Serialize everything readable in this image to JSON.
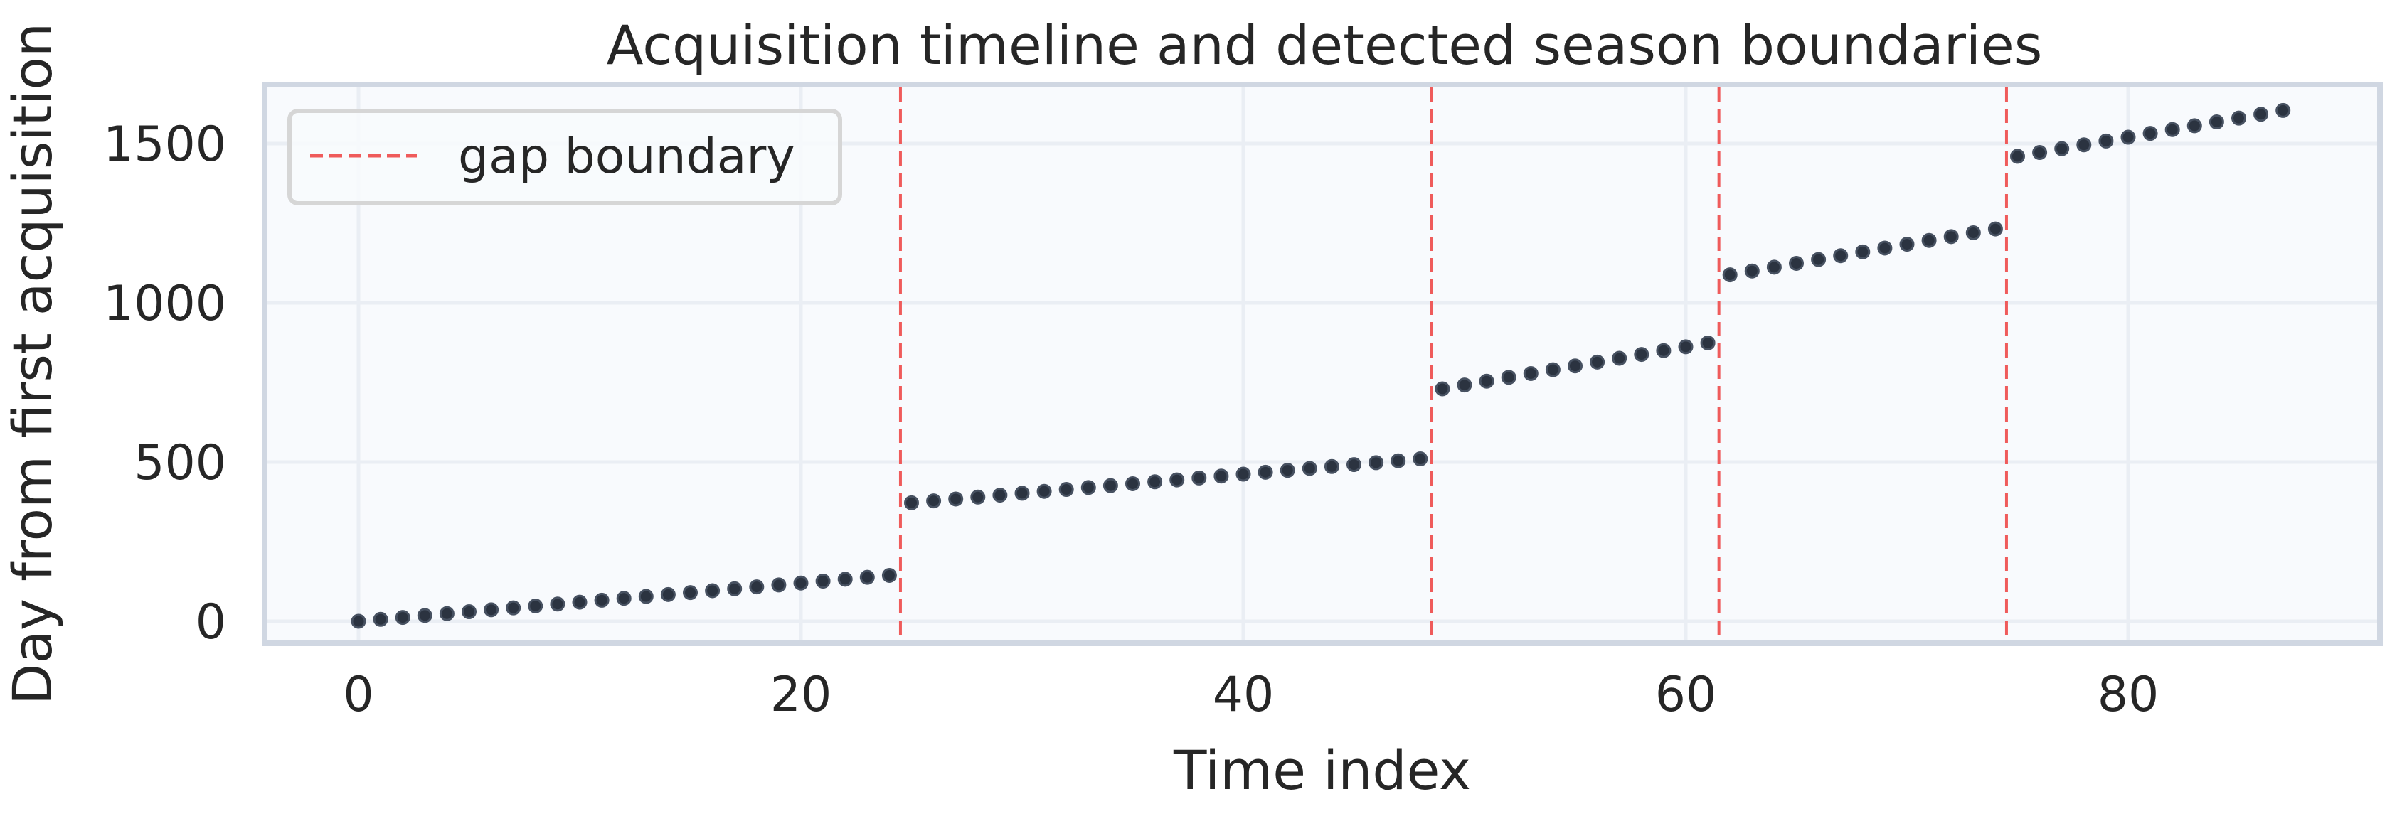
{
  "colors": {
    "background": "#ffffff",
    "plot_background": "#f8fafd",
    "plot_frame": "#d0d7e2",
    "grid": "#eaeef4",
    "points": "#2b3340",
    "points_edge": "#475161",
    "boundary": "#ef5b5b",
    "legend_border": "#d6d6d6",
    "text": "#262626"
  },
  "chart_data": {
    "type": "scatter",
    "title": "Acquisition timeline and detected season boundaries",
    "xlabel": "Time index",
    "ylabel": "Day from first acquisition",
    "xlim": [
      -4.5,
      91.5
    ],
    "ylim": [
      -80,
      1690
    ],
    "xticks": [
      0,
      20,
      40,
      60,
      80
    ],
    "yticks": [
      0,
      500,
      1000,
      1500
    ],
    "grid": true,
    "legend": {
      "position": "upper left",
      "entries": [
        {
          "label": "gap boundary",
          "style": "dashed",
          "color": "#ef5b5b"
        }
      ]
    },
    "series": [
      {
        "name": "acquisitions",
        "x": [
          0,
          1,
          2,
          3,
          4,
          5,
          6,
          7,
          8,
          9,
          10,
          11,
          12,
          13,
          14,
          15,
          16,
          17,
          18,
          19,
          20,
          21,
          22,
          23,
          24,
          25,
          26,
          27,
          28,
          29,
          30,
          31,
          32,
          33,
          34,
          35,
          36,
          37,
          38,
          39,
          40,
          41,
          42,
          43,
          44,
          45,
          46,
          47,
          48,
          49,
          50,
          51,
          52,
          53,
          54,
          55,
          56,
          57,
          58,
          59,
          60,
          61,
          62,
          63,
          64,
          65,
          66,
          67,
          68,
          69,
          70,
          71,
          72,
          73,
          74,
          75,
          76,
          77,
          78,
          79,
          80,
          81,
          82,
          83,
          84,
          85,
          86,
          87
        ],
        "y": [
          0,
          6,
          12,
          18,
          24,
          30,
          36,
          42,
          48,
          54,
          60,
          66,
          72,
          78,
          84,
          90,
          96,
          102,
          108,
          114,
          120,
          126,
          132,
          138,
          144,
          372,
          378,
          384,
          390,
          396,
          402,
          408,
          414,
          420,
          426,
          432,
          438,
          444,
          450,
          456,
          462,
          468,
          474,
          480,
          486,
          492,
          498,
          504,
          510,
          730,
          742,
          754,
          766,
          778,
          790,
          802,
          814,
          826,
          838,
          850,
          862,
          874,
          1088,
          1100,
          1112,
          1124,
          1136,
          1148,
          1160,
          1172,
          1184,
          1196,
          1208,
          1220,
          1232,
          1460,
          1472,
          1484,
          1496,
          1508,
          1520,
          1532,
          1544,
          1556,
          1568,
          1580,
          1592,
          1604
        ]
      }
    ],
    "gap_boundaries": [
      24.5,
      48.5,
      61.5,
      74.5
    ]
  }
}
